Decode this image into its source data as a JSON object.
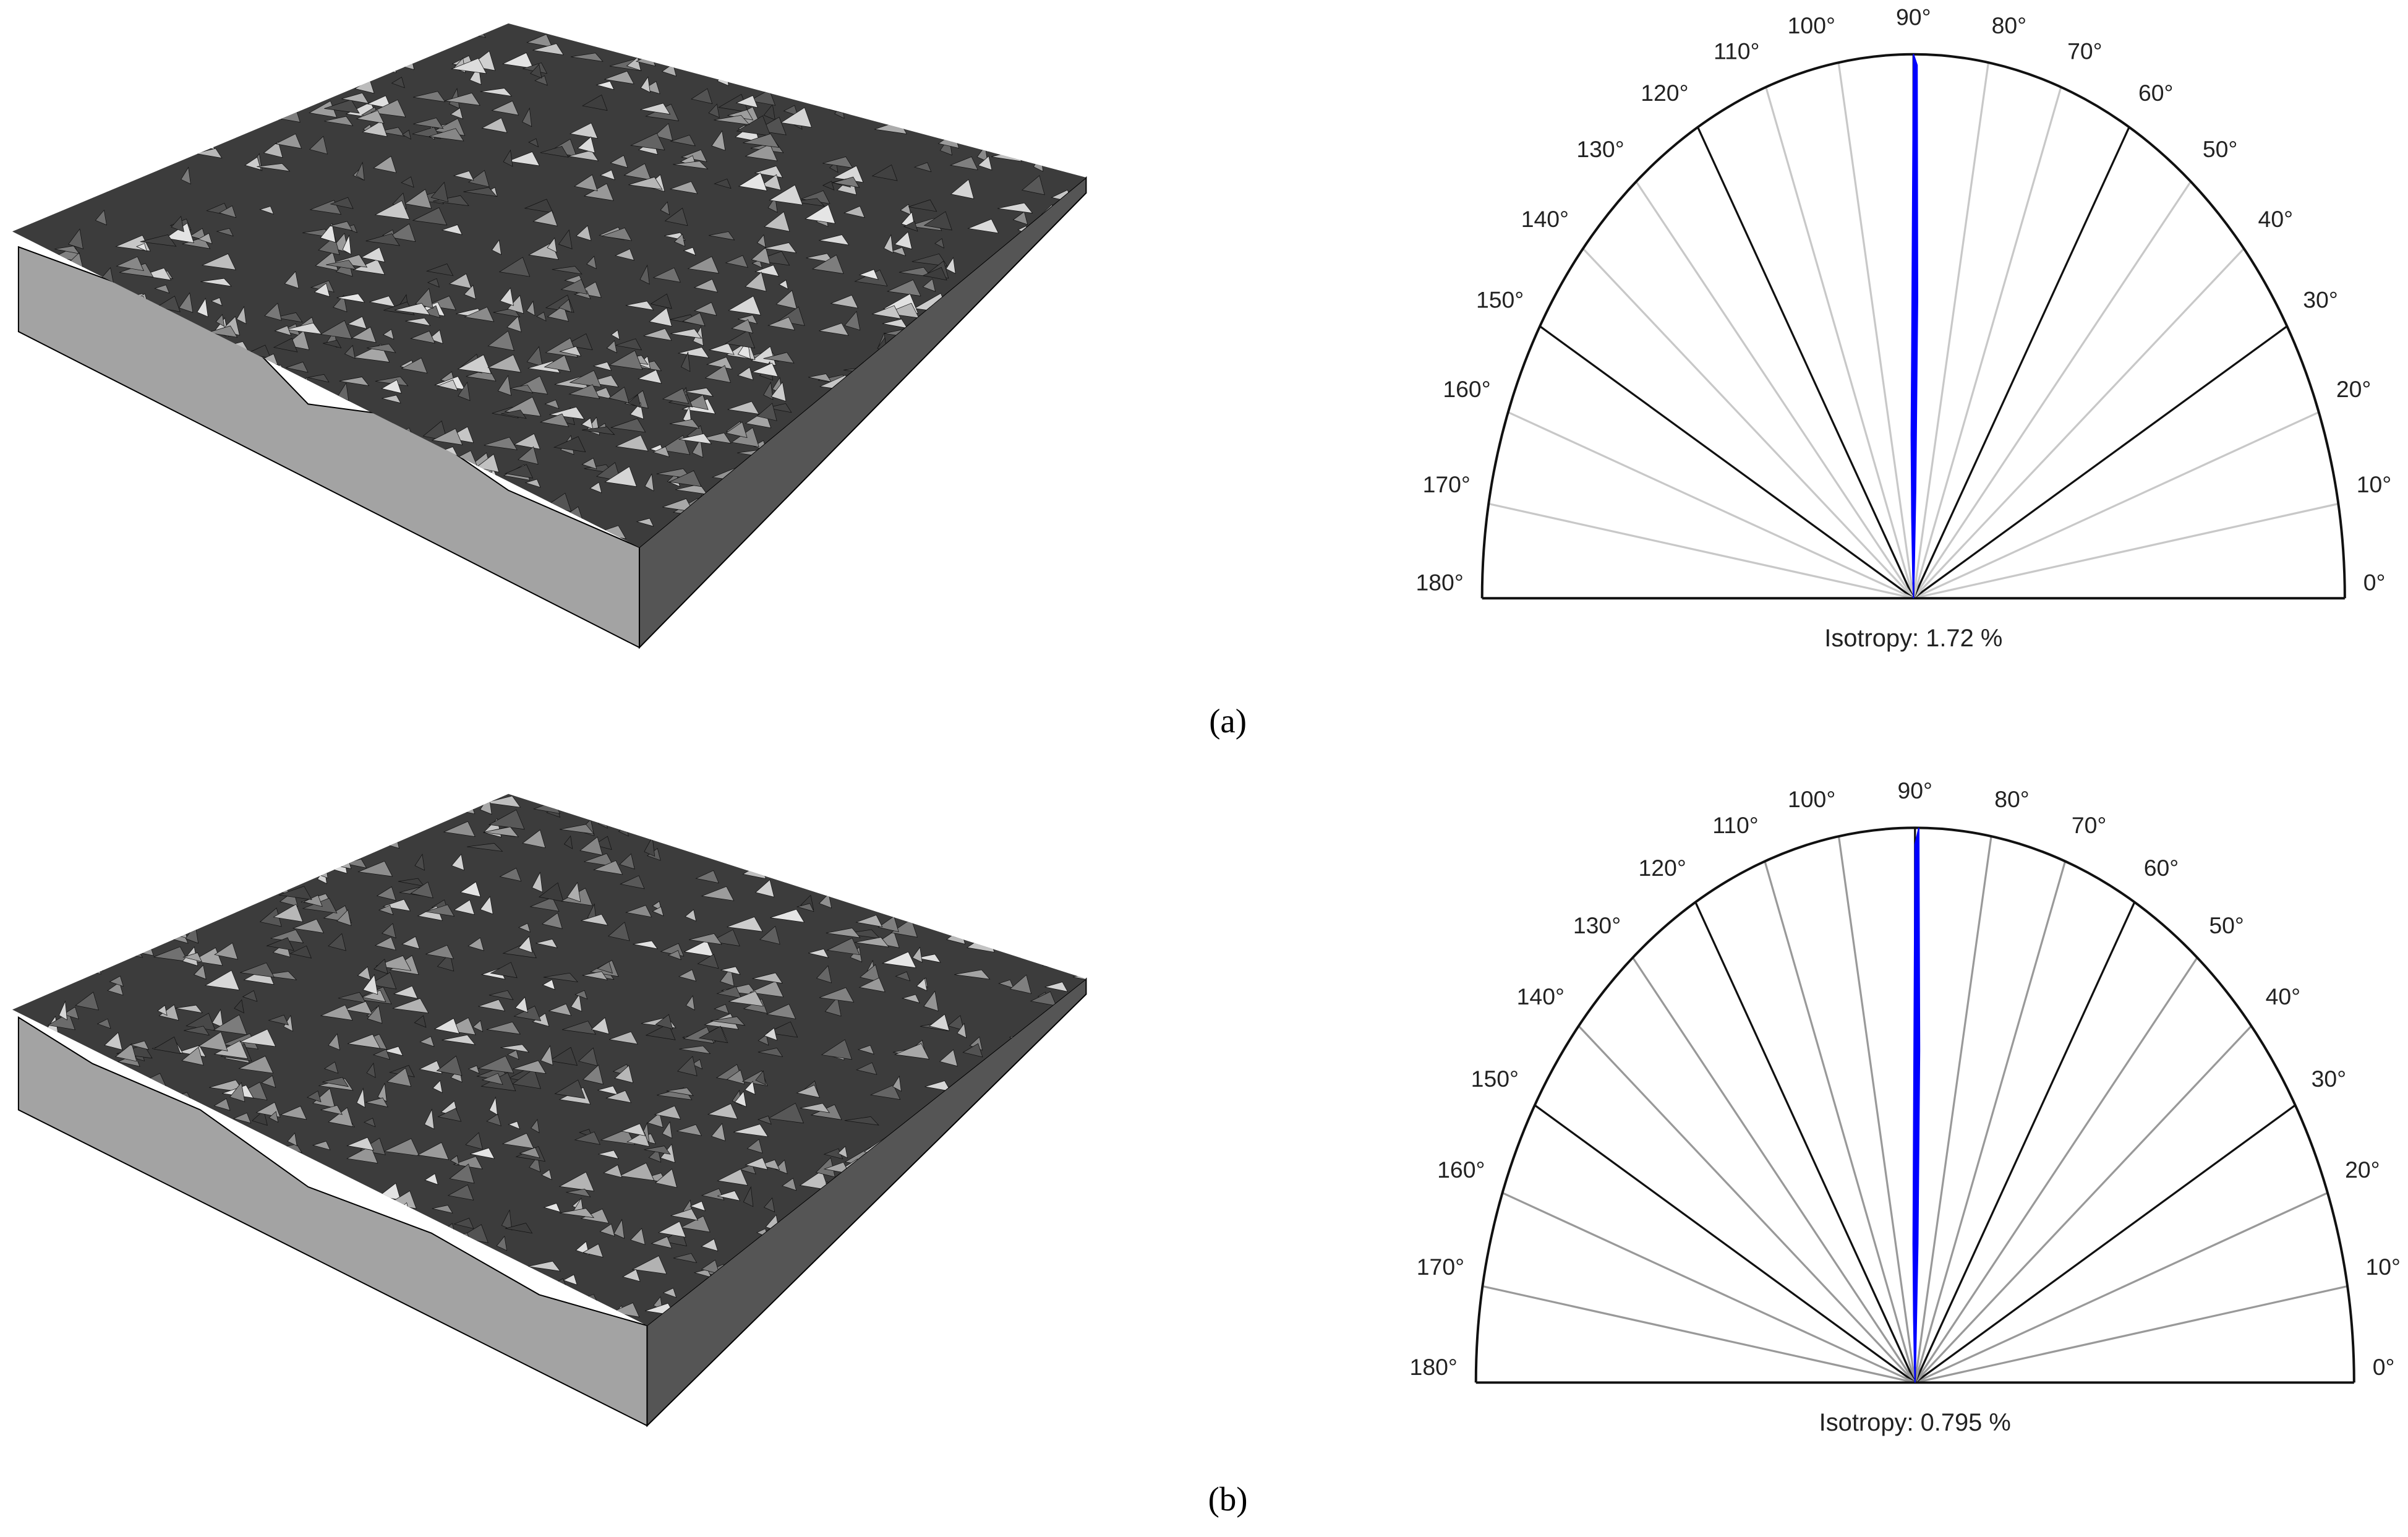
{
  "panels": [
    {
      "caption": "(a)",
      "chart_data": {
        "type": "polar",
        "annotation": "Isotropy: 1.72 %",
        "color": "#0000ff",
        "rlim": [
          0,
          1
        ],
        "theta_ticks": [
          {
            "value": 0,
            "label": "0°"
          },
          {
            "value": 10,
            "label": "10°"
          },
          {
            "value": 20,
            "label": "20°"
          },
          {
            "value": 30,
            "label": "30°"
          },
          {
            "value": 40,
            "label": "40°"
          },
          {
            "value": 50,
            "label": "50°"
          },
          {
            "value": 60,
            "label": "60°"
          },
          {
            "value": 70,
            "label": "70°"
          },
          {
            "value": 80,
            "label": "80°"
          },
          {
            "value": 90,
            "label": "90°"
          },
          {
            "value": 100,
            "label": "100°"
          },
          {
            "value": 110,
            "label": "110°"
          },
          {
            "value": 120,
            "label": "120°"
          },
          {
            "value": 130,
            "label": "130°"
          },
          {
            "value": 140,
            "label": "140°"
          },
          {
            "value": 150,
            "label": "150°"
          },
          {
            "value": 160,
            "label": "160°"
          },
          {
            "value": 170,
            "label": "170°"
          },
          {
            "value": 180,
            "label": "180°"
          }
        ],
        "x": [
          88,
          88.5,
          89,
          89.5,
          90,
          90.5,
          91,
          91.5,
          92
        ],
        "values": [
          0.05,
          0.2,
          0.55,
          0.98,
          1.0,
          0.45,
          0.3,
          0.15,
          0.05
        ]
      }
    },
    {
      "caption": "(b)",
      "chart_data": {
        "type": "polar",
        "annotation": "Isotropy: 0.795 %",
        "color": "#0000ff",
        "rlim": [
          0,
          1
        ],
        "theta_ticks": [
          {
            "value": 0,
            "label": "0°"
          },
          {
            "value": 10,
            "label": "10°"
          },
          {
            "value": 20,
            "label": "20°"
          },
          {
            "value": 30,
            "label": "30°"
          },
          {
            "value": 40,
            "label": "40°"
          },
          {
            "value": 50,
            "label": "50°"
          },
          {
            "value": 60,
            "label": "60°"
          },
          {
            "value": 70,
            "label": "70°"
          },
          {
            "value": 80,
            "label": "80°"
          },
          {
            "value": 90,
            "label": "90°"
          },
          {
            "value": 100,
            "label": "100°"
          },
          {
            "value": 110,
            "label": "110°"
          },
          {
            "value": 120,
            "label": "120°"
          },
          {
            "value": 130,
            "label": "130°"
          },
          {
            "value": 140,
            "label": "140°"
          },
          {
            "value": 150,
            "label": "150°"
          },
          {
            "value": 160,
            "label": "160°"
          },
          {
            "value": 170,
            "label": "170°"
          },
          {
            "value": 180,
            "label": "180°"
          }
        ],
        "x": [
          88,
          88.5,
          89,
          89.5,
          90,
          90.5,
          91,
          91.5,
          92
        ],
        "values": [
          0.05,
          0.25,
          0.6,
          1.0,
          0.97,
          0.4,
          0.25,
          0.12,
          0.04
        ]
      }
    }
  ]
}
